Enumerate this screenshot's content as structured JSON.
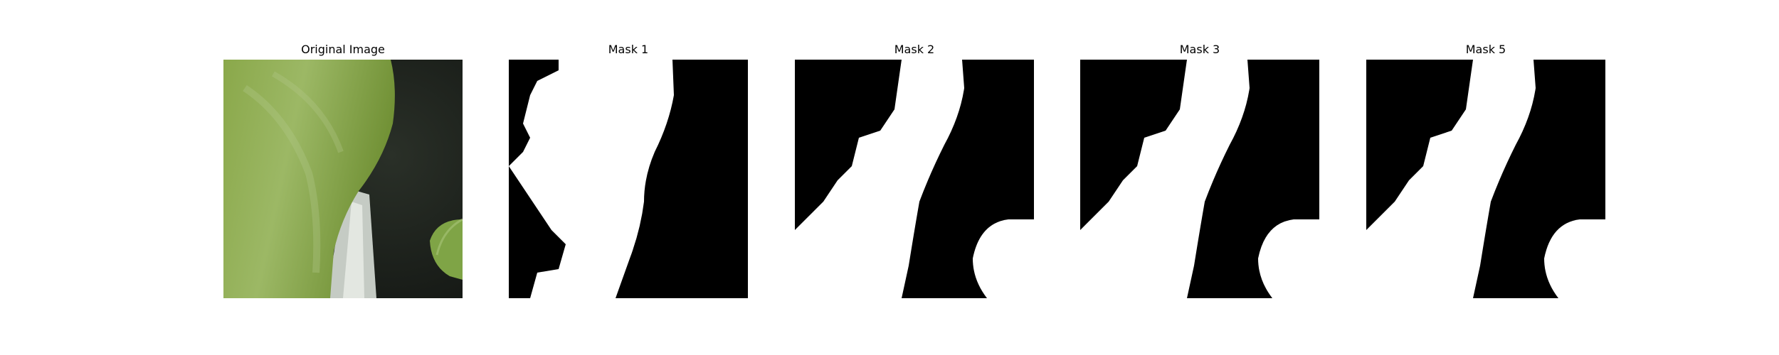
{
  "figure": {
    "panels": [
      {
        "title": "Original Image",
        "kind": "photo"
      },
      {
        "title": "Mask 1",
        "kind": "mask"
      },
      {
        "title": "Mask 2",
        "kind": "mask"
      },
      {
        "title": "Mask 3",
        "kind": "mask"
      },
      {
        "title": "Mask 5",
        "kind": "mask"
      }
    ]
  },
  "colors": {
    "background": "#ffffff",
    "mask_foreground": "#ffffff",
    "mask_background": "#000000",
    "leaf_green": "#8fab52",
    "dark_background": "#1b1f1a"
  }
}
